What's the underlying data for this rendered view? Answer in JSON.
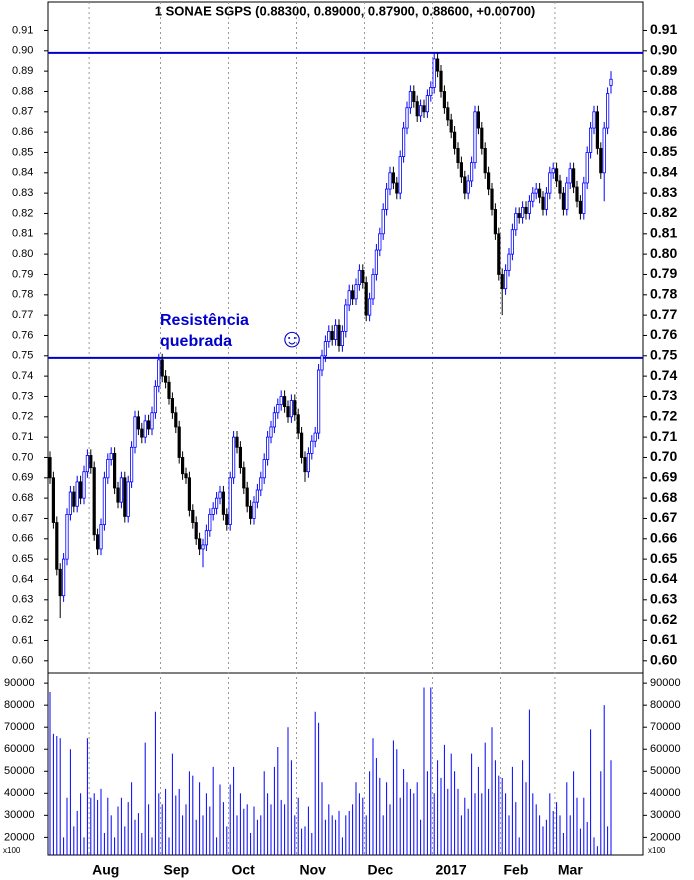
{
  "chart_data": [
    {
      "type": "candlestick",
      "title": "1 SONAE SGPS (0.88300, 0.89000, 0.87900, 0.88600, +0.00700)",
      "categories": [
        null,
        null,
        null,
        null,
        null,
        null,
        null,
        null,
        null,
        null,
        null,
        null,
        "Aug",
        null,
        null,
        null,
        null,
        null,
        null,
        null,
        null,
        null,
        null,
        null,
        null,
        null,
        null,
        null,
        null,
        null,
        null,
        null,
        null,
        "Sep",
        null,
        null,
        null,
        null,
        null,
        null,
        null,
        null,
        null,
        null,
        null,
        null,
        null,
        null,
        null,
        null,
        null,
        null,
        null,
        "Oct",
        null,
        null,
        null,
        null,
        null,
        null,
        null,
        null,
        null,
        null,
        null,
        null,
        null,
        null,
        null,
        null,
        null,
        null,
        null,
        "Nov",
        null,
        null,
        null,
        null,
        null,
        null,
        null,
        null,
        null,
        null,
        null,
        null,
        null,
        null,
        null,
        null,
        null,
        null,
        null,
        "Dec",
        null,
        null,
        null,
        null,
        null,
        null,
        null,
        null,
        null,
        null,
        null,
        null,
        null,
        null,
        null,
        null,
        null,
        null,
        null,
        "2017",
        null,
        null,
        null,
        null,
        null,
        null,
        null,
        null,
        null,
        null,
        null,
        null,
        null,
        null,
        null,
        null,
        null,
        null,
        null,
        "Feb",
        null,
        null,
        null,
        null,
        null,
        null,
        null,
        null,
        null,
        null,
        null,
        null,
        null,
        null,
        null,
        "Mar",
        null,
        null,
        null,
        null,
        null,
        null,
        null,
        null,
        null,
        null,
        null,
        null,
        null,
        null,
        null,
        null
      ],
      "open": [
        0.7,
        0.69,
        0.668,
        0.645,
        0.632,
        0.65,
        0.672,
        0.683,
        0.676,
        0.688,
        0.68,
        0.693,
        0.701,
        0.695,
        0.662,
        0.655,
        0.667,
        0.69,
        0.699,
        0.702,
        0.685,
        0.678,
        0.69,
        0.671,
        0.688,
        0.705,
        0.72,
        0.714,
        0.71,
        0.718,
        0.714,
        0.722,
        0.735,
        0.748,
        0.74,
        0.737,
        0.729,
        0.722,
        0.715,
        0.7,
        0.692,
        0.69,
        0.674,
        0.668,
        0.66,
        0.655,
        0.657,
        0.664,
        0.672,
        0.675,
        0.68,
        0.683,
        0.672,
        0.667,
        0.69,
        0.71,
        0.705,
        0.695,
        0.685,
        0.676,
        0.67,
        0.678,
        0.684,
        0.69,
        0.699,
        0.71,
        0.715,
        0.722,
        0.726,
        0.73,
        0.725,
        0.72,
        0.728,
        0.721,
        0.712,
        0.7,
        0.693,
        0.702,
        0.708,
        0.712,
        0.743,
        0.75,
        0.757,
        0.762,
        0.758,
        0.765,
        0.755,
        0.762,
        0.775,
        0.782,
        0.778,
        0.785,
        0.792,
        0.786,
        0.77,
        0.778,
        0.79,
        0.802,
        0.81,
        0.822,
        0.832,
        0.84,
        0.835,
        0.83,
        0.848,
        0.862,
        0.872,
        0.88,
        0.875,
        0.868,
        0.873,
        0.87,
        0.878,
        0.882,
        0.896,
        0.89,
        0.88,
        0.872,
        0.866,
        0.86,
        0.852,
        0.845,
        0.838,
        0.83,
        0.836,
        0.845,
        0.87,
        0.862,
        0.852,
        0.84,
        0.832,
        0.822,
        0.81,
        0.79,
        0.783,
        0.792,
        0.8,
        0.812,
        0.82,
        0.818,
        0.823,
        0.82,
        0.826,
        0.83,
        0.832,
        0.828,
        0.822,
        0.83,
        0.84,
        0.842,
        0.836,
        0.83,
        0.822,
        0.835,
        0.842,
        0.833,
        0.826,
        0.82,
        0.835,
        0.85,
        0.862,
        0.87,
        0.852,
        0.84,
        0.862,
        0.883
      ],
      "high": [
        0.703,
        0.693,
        0.671,
        0.648,
        0.653,
        0.675,
        0.686,
        0.686,
        0.691,
        0.691,
        0.696,
        0.704,
        0.704,
        0.698,
        0.665,
        0.67,
        0.693,
        0.702,
        0.705,
        0.705,
        0.688,
        0.693,
        0.693,
        0.691,
        0.708,
        0.723,
        0.723,
        0.717,
        0.721,
        0.721,
        0.725,
        0.738,
        0.751,
        0.751,
        0.743,
        0.74,
        0.732,
        0.725,
        0.718,
        0.703,
        0.695,
        0.693,
        0.677,
        0.671,
        0.663,
        0.66,
        0.667,
        0.675,
        0.678,
        0.683,
        0.686,
        0.686,
        0.675,
        0.693,
        0.713,
        0.713,
        0.708,
        0.698,
        0.688,
        0.679,
        0.681,
        0.687,
        0.693,
        0.702,
        0.713,
        0.718,
        0.725,
        0.729,
        0.733,
        0.733,
        0.728,
        0.731,
        0.731,
        0.724,
        0.715,
        0.703,
        0.705,
        0.711,
        0.715,
        0.746,
        0.753,
        0.76,
        0.765,
        0.765,
        0.768,
        0.768,
        0.765,
        0.778,
        0.785,
        0.785,
        0.788,
        0.795,
        0.795,
        0.789,
        0.781,
        0.793,
        0.805,
        0.813,
        0.825,
        0.835,
        0.843,
        0.843,
        0.838,
        0.851,
        0.865,
        0.875,
        0.883,
        0.883,
        0.878,
        0.876,
        0.876,
        0.881,
        0.885,
        0.899,
        0.899,
        0.893,
        0.883,
        0.875,
        0.869,
        0.863,
        0.855,
        0.848,
        0.841,
        0.839,
        0.848,
        0.873,
        0.873,
        0.865,
        0.855,
        0.843,
        0.835,
        0.825,
        0.813,
        0.793,
        0.795,
        0.803,
        0.815,
        0.823,
        0.823,
        0.826,
        0.826,
        0.829,
        0.833,
        0.835,
        0.835,
        0.831,
        0.833,
        0.843,
        0.845,
        0.845,
        0.839,
        0.833,
        0.838,
        0.845,
        0.845,
        0.836,
        0.829,
        0.838,
        0.853,
        0.865,
        0.873,
        0.873,
        0.855,
        0.865,
        0.882,
        0.89
      ],
      "low": [
        0.687,
        0.665,
        0.642,
        0.621,
        0.629,
        0.647,
        0.669,
        0.673,
        0.673,
        0.677,
        0.677,
        0.69,
        0.692,
        0.659,
        0.652,
        0.652,
        0.664,
        0.687,
        0.696,
        0.682,
        0.675,
        0.675,
        0.668,
        0.668,
        0.685,
        0.702,
        0.711,
        0.707,
        0.707,
        0.711,
        0.711,
        0.719,
        0.732,
        0.737,
        0.734,
        0.726,
        0.719,
        0.712,
        0.697,
        0.689,
        0.687,
        0.671,
        0.665,
        0.657,
        0.652,
        0.646,
        0.654,
        0.661,
        0.669,
        0.672,
        0.677,
        0.669,
        0.664,
        0.664,
        0.687,
        0.702,
        0.692,
        0.682,
        0.673,
        0.667,
        0.667,
        0.675,
        0.681,
        0.687,
        0.696,
        0.707,
        0.712,
        0.719,
        0.723,
        0.722,
        0.717,
        0.717,
        0.718,
        0.709,
        0.697,
        0.688,
        0.69,
        0.699,
        0.705,
        0.709,
        0.74,
        0.747,
        0.754,
        0.755,
        0.755,
        0.752,
        0.752,
        0.759,
        0.772,
        0.775,
        0.775,
        0.782,
        0.783,
        0.767,
        0.767,
        0.775,
        0.787,
        0.799,
        0.807,
        0.819,
        0.829,
        0.832,
        0.827,
        0.827,
        0.845,
        0.859,
        0.869,
        0.872,
        0.865,
        0.865,
        0.867,
        0.867,
        0.875,
        0.879,
        0.887,
        0.877,
        0.869,
        0.863,
        0.857,
        0.849,
        0.842,
        0.835,
        0.827,
        0.827,
        0.833,
        0.842,
        0.859,
        0.849,
        0.837,
        0.829,
        0.819,
        0.807,
        0.787,
        0.77,
        0.78,
        0.789,
        0.797,
        0.809,
        0.815,
        0.815,
        0.817,
        0.817,
        0.823,
        0.827,
        0.825,
        0.819,
        0.819,
        0.827,
        0.837,
        0.833,
        0.827,
        0.819,
        0.819,
        0.832,
        0.83,
        0.823,
        0.817,
        0.817,
        0.832,
        0.847,
        0.859,
        0.849,
        0.837,
        0.826,
        0.859,
        0.879
      ],
      "close": [
        0.69,
        0.668,
        0.645,
        0.632,
        0.65,
        0.672,
        0.683,
        0.676,
        0.688,
        0.68,
        0.693,
        0.701,
        0.695,
        0.662,
        0.655,
        0.667,
        0.69,
        0.699,
        0.702,
        0.685,
        0.678,
        0.69,
        0.671,
        0.688,
        0.705,
        0.72,
        0.714,
        0.71,
        0.718,
        0.714,
        0.722,
        0.735,
        0.748,
        0.74,
        0.737,
        0.729,
        0.722,
        0.715,
        0.7,
        0.692,
        0.69,
        0.674,
        0.668,
        0.66,
        0.655,
        0.657,
        0.664,
        0.672,
        0.675,
        0.68,
        0.683,
        0.672,
        0.667,
        0.69,
        0.71,
        0.705,
        0.695,
        0.685,
        0.676,
        0.67,
        0.678,
        0.684,
        0.69,
        0.699,
        0.71,
        0.715,
        0.722,
        0.726,
        0.73,
        0.725,
        0.72,
        0.728,
        0.721,
        0.712,
        0.7,
        0.693,
        0.702,
        0.708,
        0.712,
        0.743,
        0.75,
        0.757,
        0.762,
        0.758,
        0.765,
        0.755,
        0.762,
        0.775,
        0.782,
        0.778,
        0.785,
        0.792,
        0.786,
        0.77,
        0.778,
        0.79,
        0.802,
        0.81,
        0.822,
        0.832,
        0.84,
        0.835,
        0.83,
        0.848,
        0.862,
        0.872,
        0.88,
        0.875,
        0.868,
        0.873,
        0.87,
        0.878,
        0.882,
        0.896,
        0.89,
        0.88,
        0.872,
        0.866,
        0.86,
        0.852,
        0.845,
        0.838,
        0.83,
        0.836,
        0.845,
        0.87,
        0.862,
        0.852,
        0.84,
        0.832,
        0.822,
        0.81,
        0.79,
        0.783,
        0.792,
        0.8,
        0.812,
        0.82,
        0.818,
        0.823,
        0.82,
        0.826,
        0.83,
        0.832,
        0.828,
        0.822,
        0.83,
        0.84,
        0.842,
        0.836,
        0.83,
        0.822,
        0.835,
        0.842,
        0.833,
        0.826,
        0.82,
        0.835,
        0.85,
        0.862,
        0.87,
        0.852,
        0.84,
        0.862,
        0.879,
        0.886
      ],
      "up_color": "#0000ff",
      "down_color": "#000000",
      "ylim": [
        0.594,
        0.924
      ],
      "yticks": [
        {
          "value": 0.6,
          "label": "0.60"
        },
        0.61,
        0.62,
        0.63,
        0.64,
        0.65,
        0.66,
        0.67,
        0.68,
        0.69,
        {
          "value": 0.7,
          "label": "0.70"
        },
        0.71,
        0.72,
        0.73,
        0.74,
        0.75,
        0.76,
        0.77,
        0.78,
        0.79,
        {
          "value": 0.8,
          "label": "0.80"
        },
        0.81,
        0.82,
        0.83,
        0.84,
        0.85,
        0.86,
        0.87,
        0.88,
        0.89,
        {
          "value": 0.9,
          "label": "0.90"
        },
        0.91
      ],
      "hlines": [
        0.899,
        0.749
      ],
      "hline_color": "#0000cc",
      "annotation": [
        "Resistência",
        "quebrada"
      ],
      "annotation_symbol": "☺"
    },
    {
      "type": "bar",
      "values": [
        86000,
        67000,
        66000,
        65000,
        20000,
        38000,
        60000,
        25000,
        32000,
        40000,
        20000,
        65000,
        38000,
        40000,
        37000,
        42000,
        22000,
        38000,
        30000,
        20000,
        34000,
        38000,
        25000,
        36000,
        45000,
        28000,
        31000,
        22000,
        63000,
        35000,
        20000,
        77000,
        40000,
        35000,
        42000,
        20000,
        58000,
        39000,
        42000,
        30000,
        35000,
        50000,
        48000,
        28000,
        45000,
        30000,
        40000,
        34000,
        52000,
        20000,
        44000,
        36000,
        25000,
        44000,
        52000,
        30000,
        40000,
        33000,
        35000,
        22000,
        34000,
        28000,
        30000,
        50000,
        40000,
        35000,
        52000,
        61000,
        37000,
        35000,
        70000,
        55000,
        30000,
        38000,
        24000,
        25000,
        34000,
        22000,
        77000,
        72000,
        45000,
        28000,
        35000,
        30000,
        28000,
        32000,
        20000,
        30000,
        32000,
        35000,
        45000,
        40000,
        38000,
        30000,
        50000,
        65000,
        56000,
        47000,
        30000,
        45000,
        35000,
        64000,
        60000,
        38000,
        51000,
        45000,
        42000,
        40000,
        45000,
        28000,
        88000,
        50000,
        88000,
        40000,
        55000,
        47000,
        62000,
        42000,
        58000,
        50000,
        42000,
        30000,
        38000,
        33000,
        58000,
        40000,
        52000,
        40000,
        63000,
        42000,
        70000,
        55000,
        48000,
        47000,
        40000,
        30000,
        52000,
        36000,
        20000,
        55000,
        45000,
        78000,
        40000,
        35000,
        30000,
        25000,
        28000,
        40000,
        32000,
        36000,
        30000,
        22000,
        45000,
        30000,
        50000,
        38000,
        24000,
        38000,
        27000,
        69000,
        20000,
        16000,
        50000,
        80000,
        25000,
        55000
      ],
      "color": "#0000ff",
      "ylim": [
        12000,
        94600
      ],
      "yticks": [
        20000,
        30000,
        40000,
        50000,
        60000,
        70000,
        80000,
        90000
      ],
      "unit_label": "x100"
    }
  ]
}
